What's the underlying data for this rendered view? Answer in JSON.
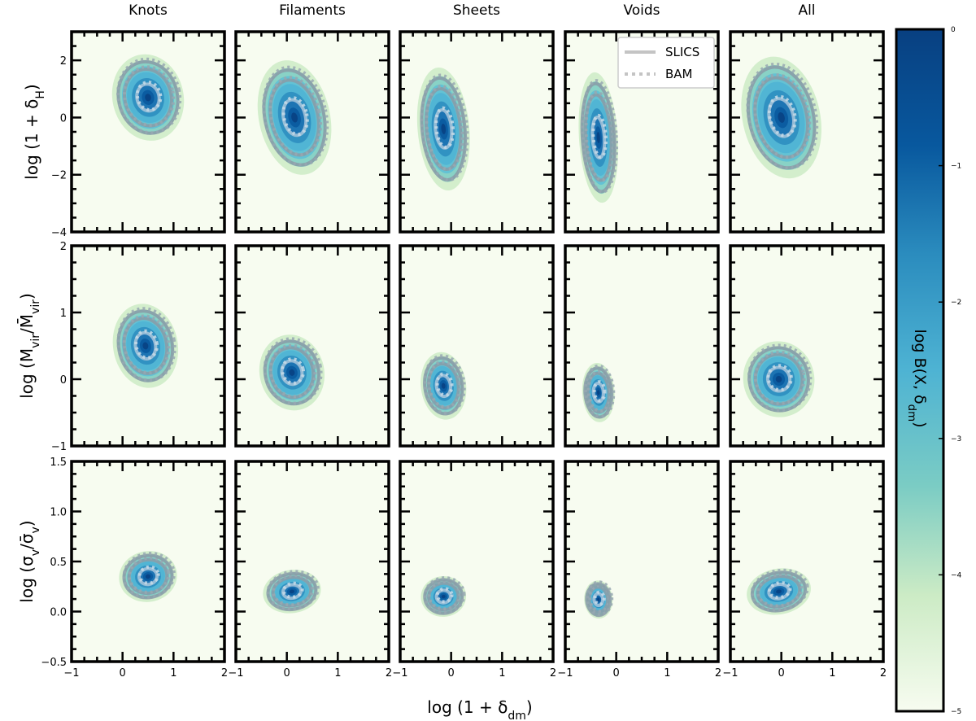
{
  "chart_data": {
    "type": "heatmap",
    "grid": {
      "columns": [
        "Knots",
        "Filaments",
        "Sheets",
        "Voids",
        "All"
      ],
      "rows": [
        {
          "ylabel": "log (1 + δ",
          "ylabel_sub": "H",
          "ylabel_tail": ")",
          "ylim": [
            -4,
            3
          ],
          "yticks": [
            -4,
            -2,
            0,
            2
          ],
          "yticklabels": [
            "−4",
            "−2",
            "0",
            "2"
          ]
        },
        {
          "ylabel": "log (M",
          "ylabel_sub": "vir",
          "ylabel_mid": "/M̄",
          "ylabel_sub2": "vir",
          "ylabel_tail": ")",
          "ylim": [
            -1,
            2
          ],
          "yticks": [
            -1,
            0,
            1,
            2
          ],
          "yticklabels": [
            "−1",
            "0",
            "1",
            "2"
          ]
        },
        {
          "ylabel": "log (σ",
          "ylabel_sub": "v",
          "ylabel_mid": "/σ̄",
          "ylabel_sub2": "v",
          "ylabel_tail": ")",
          "ylim": [
            -0.5,
            1.5
          ],
          "yticks": [
            -0.5,
            0.0,
            0.5,
            1.0,
            1.5
          ],
          "yticklabels": [
            "−0.5",
            "0.0",
            "0.5",
            "1.0",
            "1.5"
          ]
        }
      ]
    },
    "xlabel": "log (1 + δ",
    "xlabel_sub": "dm",
    "xlabel_tail": ")",
    "xlim": [
      -1,
      2
    ],
    "xticks": [
      -1,
      0,
      1,
      2
    ],
    "xticklabels": [
      "−1",
      "0",
      "1",
      "2"
    ],
    "legend": {
      "placement": "top-right of Voids panel",
      "entries": [
        {
          "name": "SLICS",
          "style": "solid"
        },
        {
          "name": "BAM",
          "style": "dotted"
        }
      ]
    },
    "colorbar": {
      "label": "log B(X, δ",
      "label_sub": "dm",
      "label_tail": ")",
      "range": [
        -5,
        0
      ],
      "ticks": [
        0,
        -1,
        -2,
        -3,
        -4,
        -5
      ],
      "ticklabels": [
        "0",
        "−1",
        "−2",
        "−3",
        "−4",
        "−5"
      ],
      "colormap": "GnBu",
      "colors": [
        "#f7fcf0",
        "#ccebc5",
        "#7bccc4",
        "#4eb3d3",
        "#2b8cbe",
        "#08589e",
        "#084081"
      ]
    },
    "contour_color": "#8a9ba6",
    "panels": [
      {
        "row": 0,
        "col": 0,
        "mode": [
          0.5,
          0.7
        ],
        "spread": [
          0.55,
          1.2
        ],
        "tilt": 0.35,
        "contour_radii": [
          0.9,
          1.9,
          2.4
        ]
      },
      {
        "row": 0,
        "col": 1,
        "mode": [
          0.15,
          0.0
        ],
        "spread": [
          0.55,
          1.6
        ],
        "tilt": 0.35,
        "contour_radii": [
          0.9,
          1.9,
          2.4
        ]
      },
      {
        "row": 0,
        "col": 2,
        "mode": [
          -0.15,
          -0.4
        ],
        "spread": [
          0.4,
          1.7
        ],
        "tilt": 0.15,
        "contour_radii": [
          0.9,
          1.9,
          2.4
        ]
      },
      {
        "row": 0,
        "col": 3,
        "mode": [
          -0.35,
          -0.7
        ],
        "spread": [
          0.3,
          1.8
        ],
        "tilt": 0.1,
        "contour_radii": [
          0.9,
          1.9,
          2.4
        ]
      },
      {
        "row": 0,
        "col": 4,
        "mode": [
          0.0,
          0.0
        ],
        "spread": [
          0.6,
          1.7
        ],
        "tilt": 0.35,
        "contour_radii": [
          0.9,
          1.9,
          2.4
        ]
      },
      {
        "row": 1,
        "col": 0,
        "mode": [
          0.45,
          0.5
        ],
        "spread": [
          0.5,
          0.5
        ],
        "tilt": 0.3,
        "contour_radii": [
          0.9,
          1.9,
          2.4
        ]
      },
      {
        "row": 1,
        "col": 1,
        "mode": [
          0.1,
          0.1
        ],
        "spread": [
          0.5,
          0.45
        ],
        "tilt": 0.35,
        "contour_radii": [
          0.9,
          1.9,
          2.4
        ]
      },
      {
        "row": 1,
        "col": 2,
        "mode": [
          -0.15,
          -0.1
        ],
        "spread": [
          0.35,
          0.4
        ],
        "tilt": 0.2,
        "contour_radii": [
          0.9,
          1.9,
          2.4
        ]
      },
      {
        "row": 1,
        "col": 3,
        "mode": [
          -0.35,
          -0.2
        ],
        "spread": [
          0.25,
          0.35
        ],
        "tilt": 0.1,
        "contour_radii": [
          0.9,
          1.9,
          2.4
        ]
      },
      {
        "row": 1,
        "col": 4,
        "mode": [
          -0.05,
          0.0
        ],
        "spread": [
          0.55,
          0.45
        ],
        "tilt": 0.35,
        "contour_radii": [
          0.9,
          1.9,
          2.4
        ]
      },
      {
        "row": 2,
        "col": 0,
        "mode": [
          0.5,
          0.35
        ],
        "spread": [
          0.45,
          0.2
        ],
        "tilt": 0.3,
        "contour_radii": [
          0.9,
          1.9,
          2.4
        ]
      },
      {
        "row": 2,
        "col": 1,
        "mode": [
          0.1,
          0.2
        ],
        "spread": [
          0.45,
          0.17
        ],
        "tilt": 0.25,
        "contour_radii": [
          0.9,
          1.9,
          2.4
        ]
      },
      {
        "row": 2,
        "col": 2,
        "mode": [
          -0.15,
          0.15
        ],
        "spread": [
          0.35,
          0.16
        ],
        "tilt": 0.15,
        "contour_radii": [
          0.9,
          1.9,
          2.4
        ]
      },
      {
        "row": 2,
        "col": 3,
        "mode": [
          -0.35,
          0.12
        ],
        "spread": [
          0.22,
          0.15
        ],
        "tilt": 0.1,
        "contour_radii": [
          0.9,
          1.9,
          2.4
        ]
      },
      {
        "row": 2,
        "col": 4,
        "mode": [
          -0.05,
          0.2
        ],
        "spread": [
          0.5,
          0.18
        ],
        "tilt": 0.3,
        "contour_radii": [
          0.9,
          1.9,
          2.4
        ]
      }
    ]
  }
}
